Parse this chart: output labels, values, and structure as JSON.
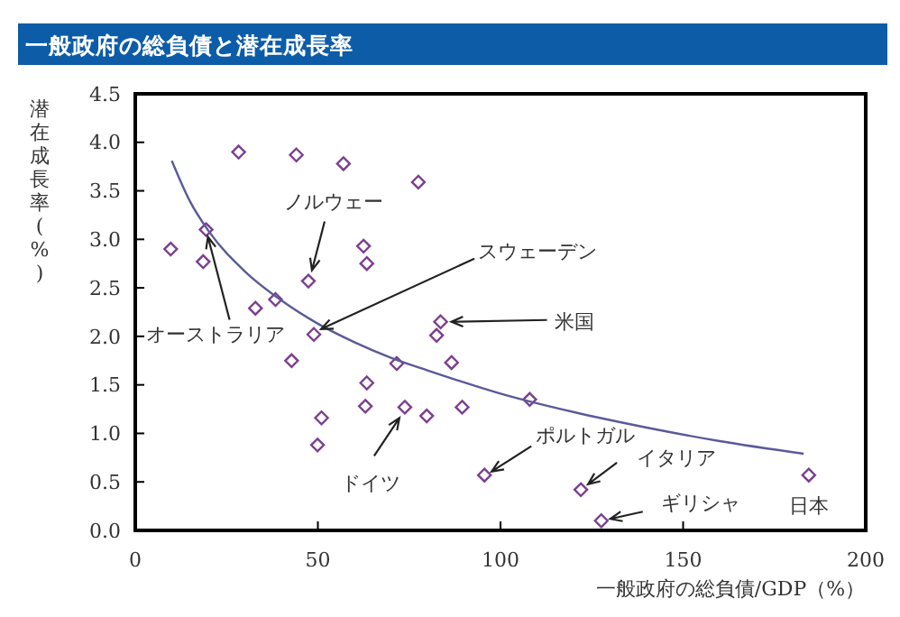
{
  "chart_data": {
    "type": "scatter",
    "title": "一般政府の総負債と潜在成長率",
    "xlabel": "一般政府の総負債/GDP（%）",
    "ylabel": "潜在成長率(%)",
    "xlim": [
      0,
      200
    ],
    "xticks": [
      0,
      50,
      100,
      150,
      200
    ],
    "ylim": [
      0,
      4.5
    ],
    "yticks": [
      {
        "value": 0,
        "label": "0.0"
      },
      {
        "value": 0.5,
        "label": "0.5"
      },
      {
        "value": 1,
        "label": "1.0"
      },
      {
        "value": 1.5,
        "label": "1.5"
      },
      {
        "value": 2,
        "label": "2.0"
      },
      {
        "value": 2.5,
        "label": "2.5"
      },
      {
        "value": 3,
        "label": "3.0"
      },
      {
        "value": 3.5,
        "label": "3.5"
      },
      {
        "value": 4,
        "label": "4.0"
      },
      {
        "value": 4.5,
        "label": "4.5"
      }
    ],
    "grid": false,
    "series": [
      {
        "color": "#7b3f8f",
        "marker": "diamond",
        "x": [
          28.3,
          44.1,
          57,
          77.5,
          9.7,
          19.4,
          18.6,
          62.5,
          63.4,
          47.4,
          38.4,
          32.9,
          48.9,
          83.6,
          82.5,
          42.8,
          71.6,
          86.6,
          63.4,
          63,
          73.8,
          79.8,
          89.5,
          51,
          49.9,
          95.6,
          108,
          122,
          127.6,
          184.4
        ],
        "values": [
          3.9,
          3.87,
          3.78,
          3.59,
          2.9,
          3.1,
          2.77,
          2.93,
          2.75,
          2.57,
          2.38,
          2.29,
          2.02,
          2.15,
          2.01,
          1.75,
          1.72,
          1.73,
          1.52,
          1.28,
          1.27,
          1.18,
          1.27,
          1.16,
          0.88,
          0.57,
          1.35,
          0.42,
          0.1,
          0.57
        ]
      },
      {
        "type": "line",
        "color": "#5a5a9a",
        "marker": "none",
        "line_style": "solid",
        "x": [
          10,
          15,
          20,
          30,
          40,
          50,
          60,
          70,
          80,
          100,
          120,
          140,
          160,
          183
        ],
        "values": [
          3.81,
          3.39,
          3.09,
          2.67,
          2.37,
          2.13,
          1.94,
          1.78,
          1.65,
          1.41,
          1.22,
          1.06,
          0.92,
          0.79
        ]
      }
    ],
    "annotations": [
      {
        "text": "ノルウェー",
        "x": 47.4,
        "y": 2.57
      },
      {
        "text": "スウェーデン",
        "x": 48.9,
        "y": 2.02
      },
      {
        "text": "米国",
        "x": 83.6,
        "y": 2.15
      },
      {
        "text": "オーストラリア",
        "x": 19.4,
        "y": 3.1
      },
      {
        "text": "ドイツ",
        "x": 73.8,
        "y": 1.27
      },
      {
        "text": "ポルトガル",
        "x": 95.6,
        "y": 0.57
      },
      {
        "text": "イタリア",
        "x": 122,
        "y": 0.42
      },
      {
        "text": "ギリシャ",
        "x": 127.6,
        "y": 0.1
      },
      {
        "text": "日本",
        "x": 184.4,
        "y": 0.57
      }
    ]
  }
}
